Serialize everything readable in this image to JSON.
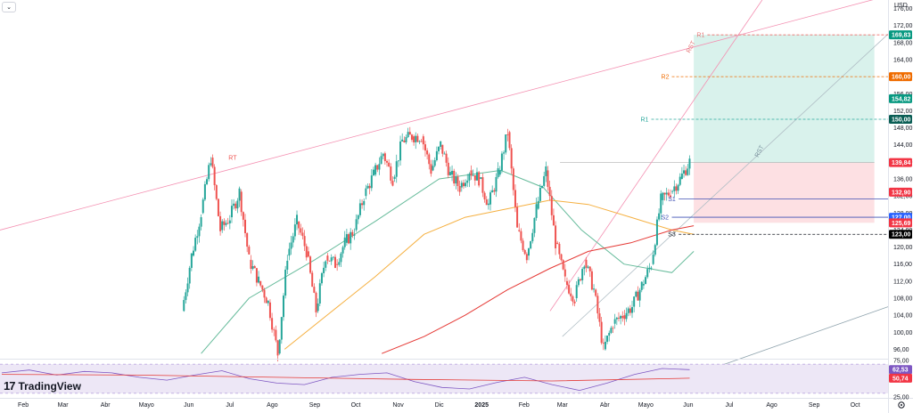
{
  "header": {
    "currency": "USD"
  },
  "branding": {
    "logo_text": "TradingView"
  },
  "icons": {
    "collapse": "chevron-down-icon",
    "settings": "gear-icon"
  },
  "colors": {
    "up": "#26a69a",
    "down": "#ef5350",
    "ma_green": "#66bb9b",
    "ma_orange": "#f5b041",
    "ma_red": "#e53935",
    "channel_pink": "#f48fb1",
    "rsi": "#7e57c2",
    "rsi_ma": "#e53935",
    "target_zone": "#d9f2ec",
    "stop_zone": "#fde0e3",
    "s_blue": "#3f51b5"
  },
  "price_labels": [
    {
      "value": "169,83",
      "color": "#089981"
    },
    {
      "value": "160,00",
      "color": "#ef6c00"
    },
    {
      "value": "154,82",
      "color": "#089981"
    },
    {
      "value": "150,00",
      "color": "#0b5e55"
    },
    {
      "value": "139,84",
      "color": "#f23645"
    },
    {
      "value": "132,90",
      "color": "#f23645"
    },
    {
      "value": "127,00",
      "color": "#2962ff"
    },
    {
      "value": "125,69",
      "color": "#f23645"
    },
    {
      "value": "123,00",
      "color": "#000000"
    }
  ],
  "rsi_labels": [
    {
      "value": "62,53",
      "color": "#7e57c2"
    },
    {
      "value": "50,74",
      "color": "#f23645"
    }
  ],
  "annotations": [
    {
      "text": "R1",
      "color": "#e57373"
    },
    {
      "text": "R2",
      "color": "#ef6c00"
    },
    {
      "text": "R1",
      "color": "#26a69a"
    },
    {
      "text": "S1",
      "color": "#3f51b5"
    },
    {
      "text": "S2",
      "color": "#3f51b5"
    },
    {
      "text": "S3",
      "color": "#131722"
    },
    {
      "text": "RT",
      "color": "#ef5350"
    },
    {
      "text": "RST",
      "color": "#e57373"
    },
    {
      "text": "RST",
      "color": "#78909c"
    }
  ],
  "chart_data": {
    "type": "line",
    "subtype": "candlestick",
    "y_scale": "linear",
    "ylim": [
      94,
      178
    ],
    "y_ticks": [
      "176,00",
      "172,00",
      "168,00",
      "164,00",
      "160,00",
      "156,00",
      "152,00",
      "148,00",
      "144,00",
      "140,00",
      "136,00",
      "132,00",
      "128,00",
      "124,00",
      "120,00",
      "116,00",
      "112,00",
      "108,00",
      "104,00",
      "100,00",
      "96,00"
    ],
    "x_ticks": [
      "Feb",
      "Mar",
      "Abr",
      "Mayo",
      "Jun",
      "Jul",
      "Ago",
      "Sep",
      "Oct",
      "Nov",
      "Dic",
      "2025",
      "Feb",
      "Mar",
      "Abr",
      "Mayo",
      "Jun",
      "Jul",
      "Ago",
      "Sep",
      "Oct"
    ],
    "x_range": [
      "2024-01-15",
      "2025-10-25"
    ],
    "close_series": [
      [
        "2024-05-27",
        105
      ],
      [
        "2024-06-03",
        118
      ],
      [
        "2024-06-10",
        128
      ],
      [
        "2024-06-17",
        141
      ],
      [
        "2024-06-24",
        124
      ],
      [
        "2024-07-01",
        127
      ],
      [
        "2024-07-08",
        133
      ],
      [
        "2024-07-15",
        117
      ],
      [
        "2024-07-22",
        112
      ],
      [
        "2024-07-29",
        107
      ],
      [
        "2024-08-05",
        95
      ],
      [
        "2024-08-12",
        118
      ],
      [
        "2024-08-19",
        126
      ],
      [
        "2024-08-26",
        119
      ],
      [
        "2024-09-02",
        105
      ],
      [
        "2024-09-09",
        118
      ],
      [
        "2024-09-16",
        116
      ],
      [
        "2024-09-23",
        121
      ],
      [
        "2024-09-30",
        124
      ],
      [
        "2024-10-07",
        132
      ],
      [
        "2024-10-14",
        137
      ],
      [
        "2024-10-21",
        142
      ],
      [
        "2024-10-28",
        136
      ],
      [
        "2024-11-04",
        145
      ],
      [
        "2024-11-11",
        146
      ],
      [
        "2024-11-18",
        146
      ],
      [
        "2024-11-25",
        138
      ],
      [
        "2024-12-02",
        144
      ],
      [
        "2024-12-09",
        137
      ],
      [
        "2024-12-16",
        134
      ],
      [
        "2024-12-23",
        138
      ],
      [
        "2024-12-30",
        136
      ],
      [
        "2025-01-06",
        130
      ],
      [
        "2025-01-13",
        137
      ],
      [
        "2025-01-20",
        147
      ],
      [
        "2025-01-27",
        124
      ],
      [
        "2025-02-03",
        118
      ],
      [
        "2025-02-10",
        129
      ],
      [
        "2025-02-17",
        138
      ],
      [
        "2025-02-24",
        121
      ],
      [
        "2025-03-03",
        112
      ],
      [
        "2025-03-10",
        108
      ],
      [
        "2025-03-17",
        117
      ],
      [
        "2025-03-24",
        110
      ],
      [
        "2025-03-31",
        96
      ],
      [
        "2025-04-07",
        102
      ],
      [
        "2025-04-14",
        104
      ],
      [
        "2025-04-21",
        106
      ],
      [
        "2025-04-28",
        111
      ],
      [
        "2025-05-05",
        116
      ],
      [
        "2025-05-12",
        131
      ],
      [
        "2025-05-19",
        133
      ],
      [
        "2025-05-26",
        136
      ],
      [
        "2025-06-02",
        140
      ]
    ],
    "moving_averages": [
      {
        "name": "",
        "color": "#66bb9b",
        "points": [
          [
            "2024-06-10",
            95
          ],
          [
            "2024-07-15",
            108
          ],
          [
            "2024-09-01",
            117
          ],
          [
            "2024-10-15",
            126
          ],
          [
            "2024-12-01",
            136
          ],
          [
            "2025-01-15",
            138
          ],
          [
            "2025-02-15",
            134
          ],
          [
            "2025-03-15",
            124
          ],
          [
            "2025-04-15",
            116
          ],
          [
            "2025-05-20",
            114
          ],
          [
            "2025-06-05",
            119
          ]
        ]
      },
      {
        "name": "",
        "color": "#f5b041",
        "points": [
          [
            "2024-08-10",
            96
          ],
          [
            "2024-09-10",
            104
          ],
          [
            "2024-10-15",
            113
          ],
          [
            "2024-11-20",
            123
          ],
          [
            "2024-12-20",
            127
          ],
          [
            "2025-01-20",
            129
          ],
          [
            "2025-02-20",
            131
          ],
          [
            "2025-03-20",
            130
          ],
          [
            "2025-04-20",
            127
          ],
          [
            "2025-05-20",
            124
          ],
          [
            "2025-06-05",
            123
          ]
        ]
      },
      {
        "name": "",
        "color": "#e53935",
        "points": [
          [
            "2024-10-20",
            95
          ],
          [
            "2024-11-20",
            99
          ],
          [
            "2024-12-20",
            104
          ],
          [
            "2025-01-20",
            110
          ],
          [
            "2025-02-20",
            115
          ],
          [
            "2025-03-20",
            119
          ],
          [
            "2025-04-20",
            121
          ],
          [
            "2025-05-20",
            124
          ],
          [
            "2025-06-05",
            125
          ]
        ]
      }
    ],
    "position": {
      "entry": 139.84,
      "target": 169.83,
      "stop": 132.9,
      "start": "2025-06-05",
      "end": "2025-10-15"
    },
    "horizontal_levels": [
      {
        "label": "R1",
        "value": 169.83,
        "color": "#ef5350",
        "start": "2025-06-15"
      },
      {
        "label": "R2",
        "value": 160,
        "color": "#ef6c00",
        "start": "2025-05-20"
      },
      {
        "label": "R1",
        "value": 150,
        "color": "#26a69a",
        "start": "2025-05-05"
      },
      {
        "label": "S1",
        "value": 131.3,
        "color": "#3f51b5",
        "start": "2025-05-25"
      },
      {
        "label": "S2",
        "value": 127,
        "color": "#3f51b5",
        "start": "2025-05-20"
      },
      {
        "label": "S3",
        "value": 123,
        "color": "#131722",
        "start": "2025-05-25"
      }
    ],
    "trendlines": [
      {
        "name": "RT",
        "color": "#f48fb1",
        "from": [
          "2024-01-15",
          124
        ],
        "to": [
          "2025-10-25",
          179
        ]
      },
      {
        "name": "RST",
        "color": "#f48fb1",
        "from": [
          "2025-02-20",
          105
        ],
        "to": [
          "2025-07-25",
          178
        ]
      },
      {
        "name": "RST",
        "color": "#b0bec5",
        "from": [
          "2025-03-01",
          99
        ],
        "to": [
          "2025-10-25",
          170
        ]
      },
      {
        "name": "",
        "color": "#90a4ae",
        "from": [
          "2025-05-10",
          87
        ],
        "to": [
          "2025-10-25",
          106
        ]
      }
    ],
    "rsi": {
      "ylim": [
        25,
        75
      ],
      "y_ticks": [
        "75,00",
        "25,00"
      ],
      "band": [
        30,
        70
      ],
      "value": 62.53,
      "ma_value": 50.74,
      "series": [
        [
          0,
          58
        ],
        [
          0.04,
          62
        ],
        [
          0.08,
          55
        ],
        [
          0.12,
          60
        ],
        [
          0.16,
          58
        ],
        [
          0.2,
          52
        ],
        [
          0.24,
          48
        ],
        [
          0.28,
          55
        ],
        [
          0.32,
          61
        ],
        [
          0.36,
          50
        ],
        [
          0.4,
          44
        ],
        [
          0.44,
          42
        ],
        [
          0.48,
          52
        ],
        [
          0.52,
          56
        ],
        [
          0.56,
          58
        ],
        [
          0.6,
          46
        ],
        [
          0.64,
          38
        ],
        [
          0.68,
          36
        ],
        [
          0.72,
          45
        ],
        [
          0.76,
          52
        ],
        [
          0.8,
          42
        ],
        [
          0.84,
          34
        ],
        [
          0.88,
          44
        ],
        [
          0.92,
          56
        ],
        [
          0.96,
          64
        ],
        [
          1,
          62.5
        ]
      ],
      "ma_series": [
        [
          0,
          56
        ],
        [
          0.2,
          55
        ],
        [
          0.4,
          52
        ],
        [
          0.6,
          49
        ],
        [
          0.8,
          47
        ],
        [
          1,
          50.7
        ]
      ]
    }
  }
}
